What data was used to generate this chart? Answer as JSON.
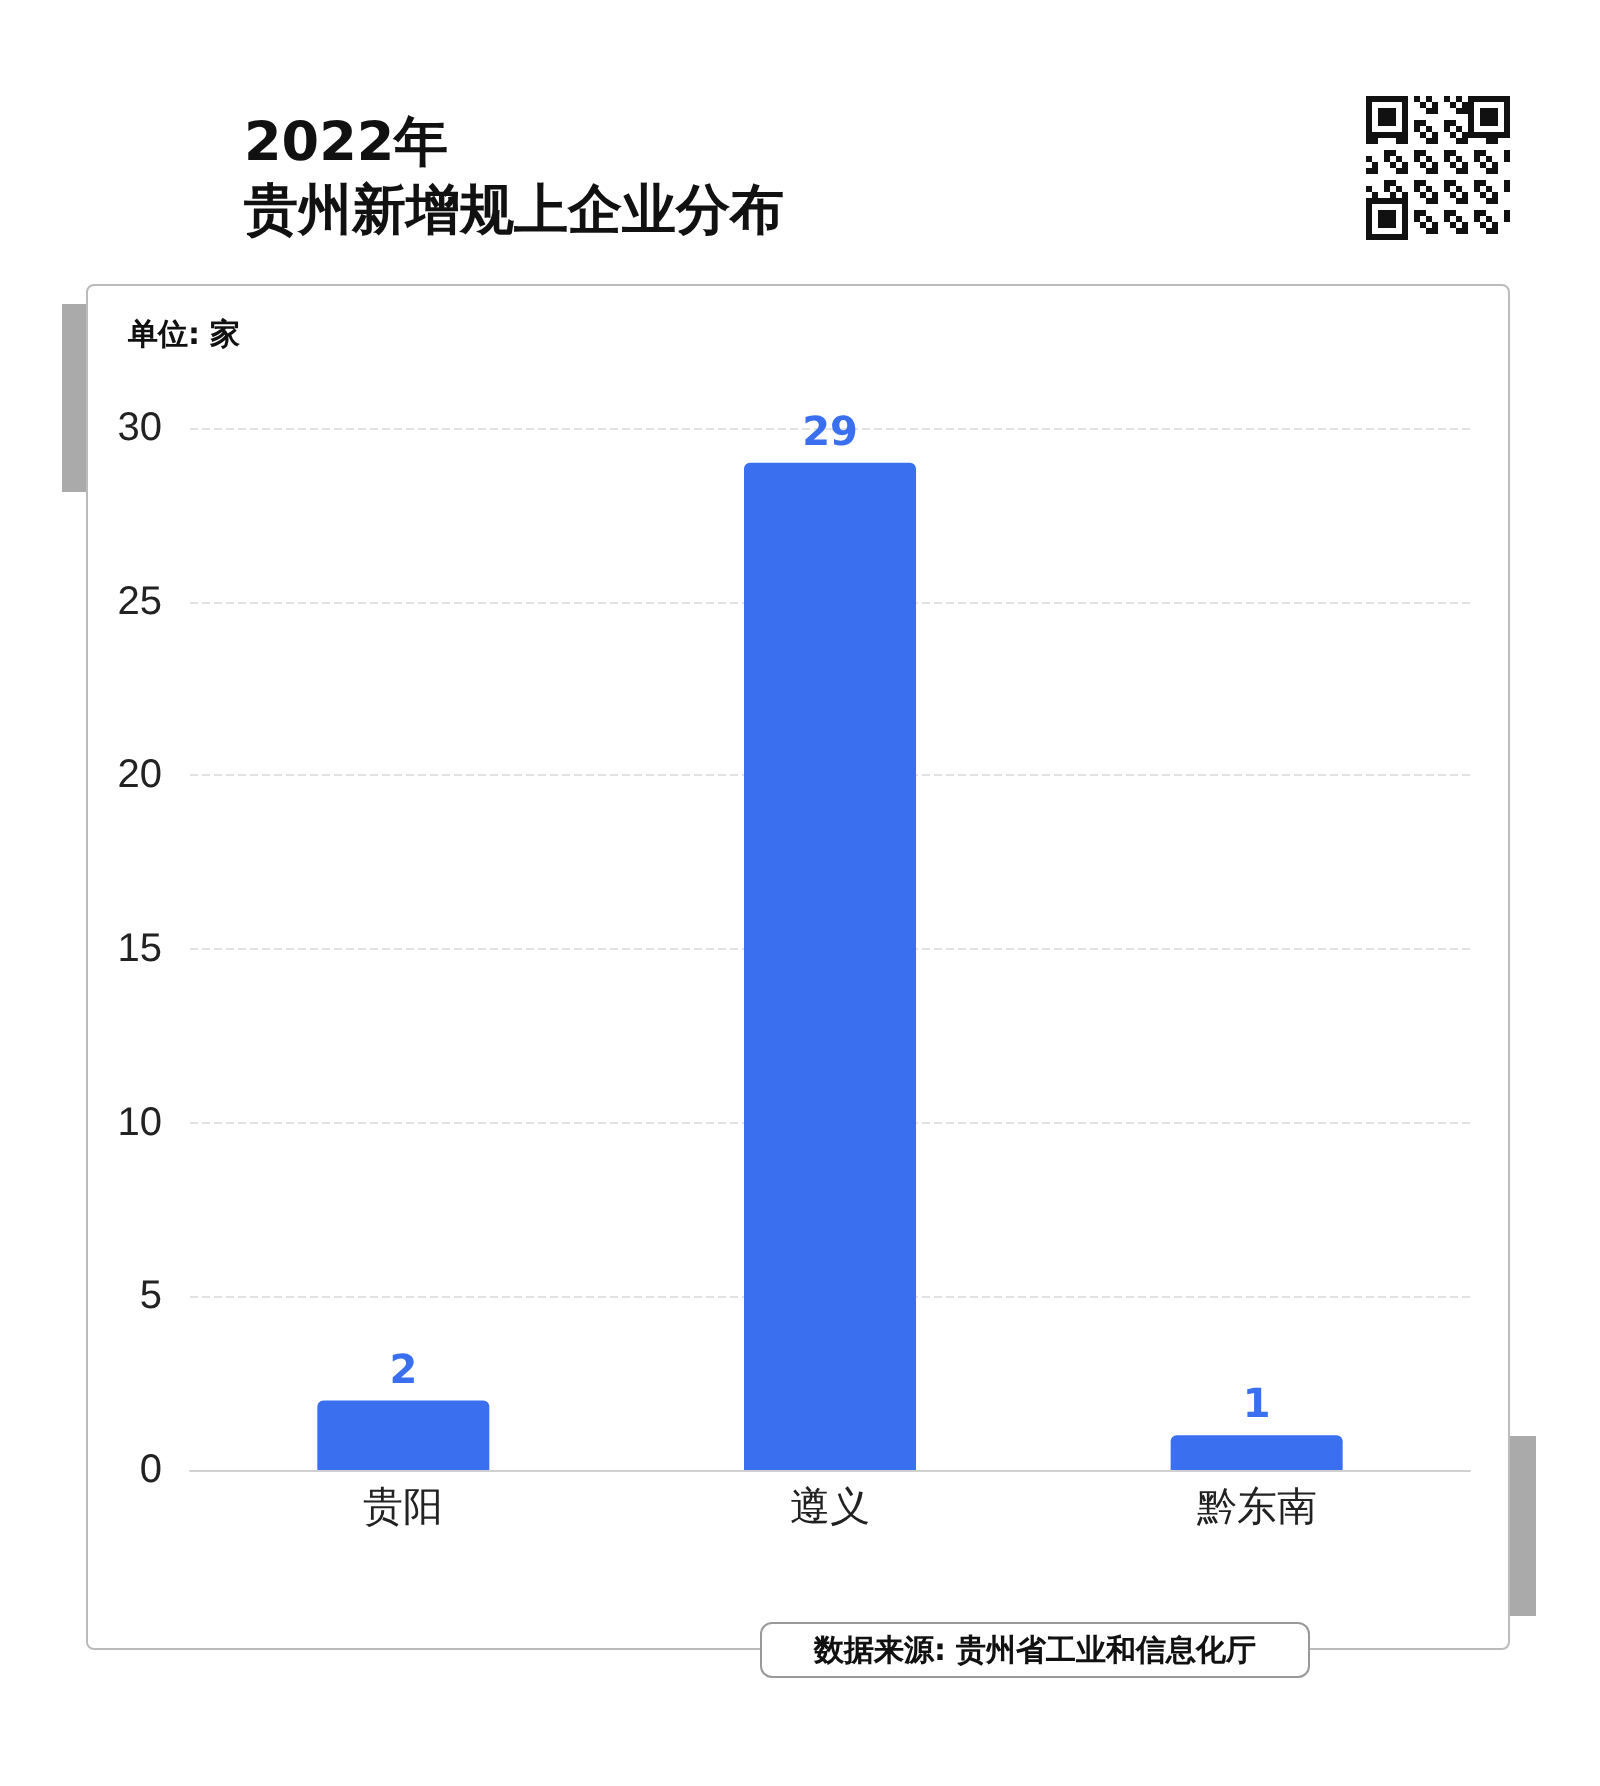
{
  "chart_data": {
    "type": "bar",
    "title": "2022年",
    "subtitle": "贵州新增规上企业分布",
    "ylabel": "单位: 家",
    "categories": [
      "贵阳",
      "遵义",
      "黔东南"
    ],
    "values": [
      2,
      29,
      1
    ],
    "color": "#3a70f0",
    "ylim": [
      0,
      30
    ],
    "yticks": [
      0,
      5,
      10,
      15,
      20,
      25,
      30
    ],
    "grid": "y",
    "data_labels": true,
    "annotations": [
      "数据来源: 贵州省工业和信息化厅"
    ]
  }
}
